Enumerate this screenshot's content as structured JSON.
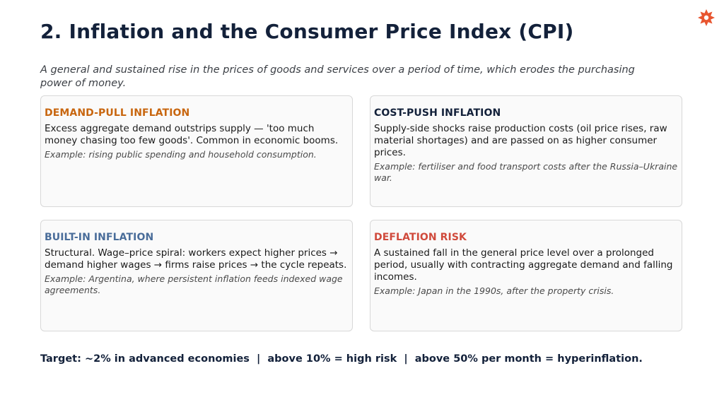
{
  "title": "2. Inflation and the Consumer Price Index (CPI)",
  "subtitle": "A general and sustained rise in the prices of goods and services over a period of time, which erodes the purchasing power of money.",
  "colors": {
    "title": "#13213a",
    "demand_pull": "#c8660f",
    "cost_push": "#13213a",
    "built_in": "#4a6d9a",
    "deflation": "#d04a3c",
    "logo": "#e8552f"
  },
  "logo_icon": "star-burst-icon",
  "cards": [
    {
      "title": "DEMAND-PULL INFLATION",
      "body": "Excess aggregate demand outstrips supply — 'too much money chasing too few goods'. Common in economic booms.",
      "example": "Example: rising public spending and household consumption."
    },
    {
      "title": "COST-PUSH INFLATION",
      "body": "Supply-side shocks raise production costs (oil price rises, raw material shortages) and are passed on as higher consumer prices.",
      "example": "Example: fertiliser and food transport costs after the Russia–Ukraine war."
    },
    {
      "title": "BUILT-IN INFLATION",
      "body": "Structural. Wage–price spiral: workers expect higher prices → demand higher wages → firms raise prices → the cycle repeats.",
      "example": "Example: Argentina, where persistent inflation feeds indexed wage agreements."
    },
    {
      "title": "DEFLATION RISK",
      "body": "A sustained fall in the general price level over a prolonged period, usually with contracting aggregate demand and falling incomes.",
      "example": "Example: Japan in the 1990s, after the property crisis."
    }
  ],
  "footer": "Target: ~2% in advanced economies  |  above 10% = high risk  |  above 50% per month = hyperinflation."
}
